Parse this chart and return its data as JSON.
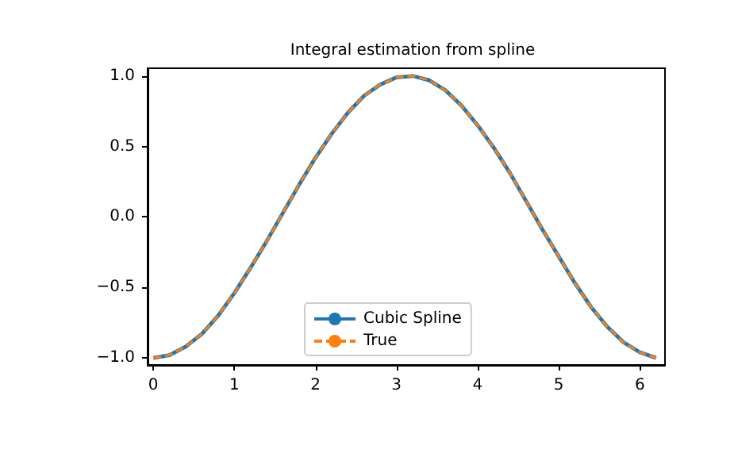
{
  "chart_data": {
    "type": "line",
    "title": "Integral estimation from spline",
    "x": [
      0,
      0.2,
      0.4,
      0.6,
      0.8,
      1.0,
      1.2,
      1.4,
      1.6,
      1.8,
      2.0,
      2.2,
      2.4,
      2.6,
      2.8,
      3.0,
      3.2,
      3.4,
      3.6,
      3.8,
      4.0,
      4.2,
      4.4,
      4.6,
      4.8,
      5.0,
      5.2,
      5.4,
      5.6,
      5.8,
      6.0,
      6.2
    ],
    "series": [
      {
        "name": "Cubic Spline",
        "color": "#1f77b4",
        "line_style": "solid",
        "values": [
          -1,
          -0.98,
          -0.92,
          -0.83,
          -0.7,
          -0.54,
          -0.36,
          -0.17,
          0.03,
          0.23,
          0.42,
          0.59,
          0.74,
          0.86,
          0.94,
          0.99,
          1.0,
          0.97,
          0.9,
          0.79,
          0.65,
          0.49,
          0.31,
          0.11,
          -0.09,
          -0.28,
          -0.47,
          -0.64,
          -0.78,
          -0.89,
          -0.96,
          -1.0
        ]
      },
      {
        "name": "True",
        "color": "#ff7f0e",
        "line_style": "dashed",
        "values": [
          -1,
          -0.98,
          -0.92,
          -0.83,
          -0.7,
          -0.54,
          -0.36,
          -0.17,
          0.03,
          0.23,
          0.42,
          0.59,
          0.74,
          0.86,
          0.94,
          0.99,
          1.0,
          0.97,
          0.9,
          0.79,
          0.65,
          0.49,
          0.31,
          0.11,
          -0.09,
          -0.28,
          -0.47,
          -0.64,
          -0.78,
          -0.89,
          -0.96,
          -1.0
        ]
      }
    ],
    "xlim": [
      -0.07,
      6.31
    ],
    "xticks": [
      0,
      1,
      2,
      3,
      4,
      5,
      6
    ],
    "ylim": [
      -1.05,
      1.055
    ],
    "yticks": [
      {
        "value": -1,
        "label": "−1.0"
      },
      {
        "value": -0.5,
        "label": "−0.5"
      },
      {
        "value": 0,
        "label": "0.0"
      },
      {
        "value": 0.5,
        "label": "0.5"
      },
      {
        "value": 1,
        "label": "1.0"
      }
    ],
    "grid": false,
    "legend": "bottom",
    "marker": "none"
  }
}
